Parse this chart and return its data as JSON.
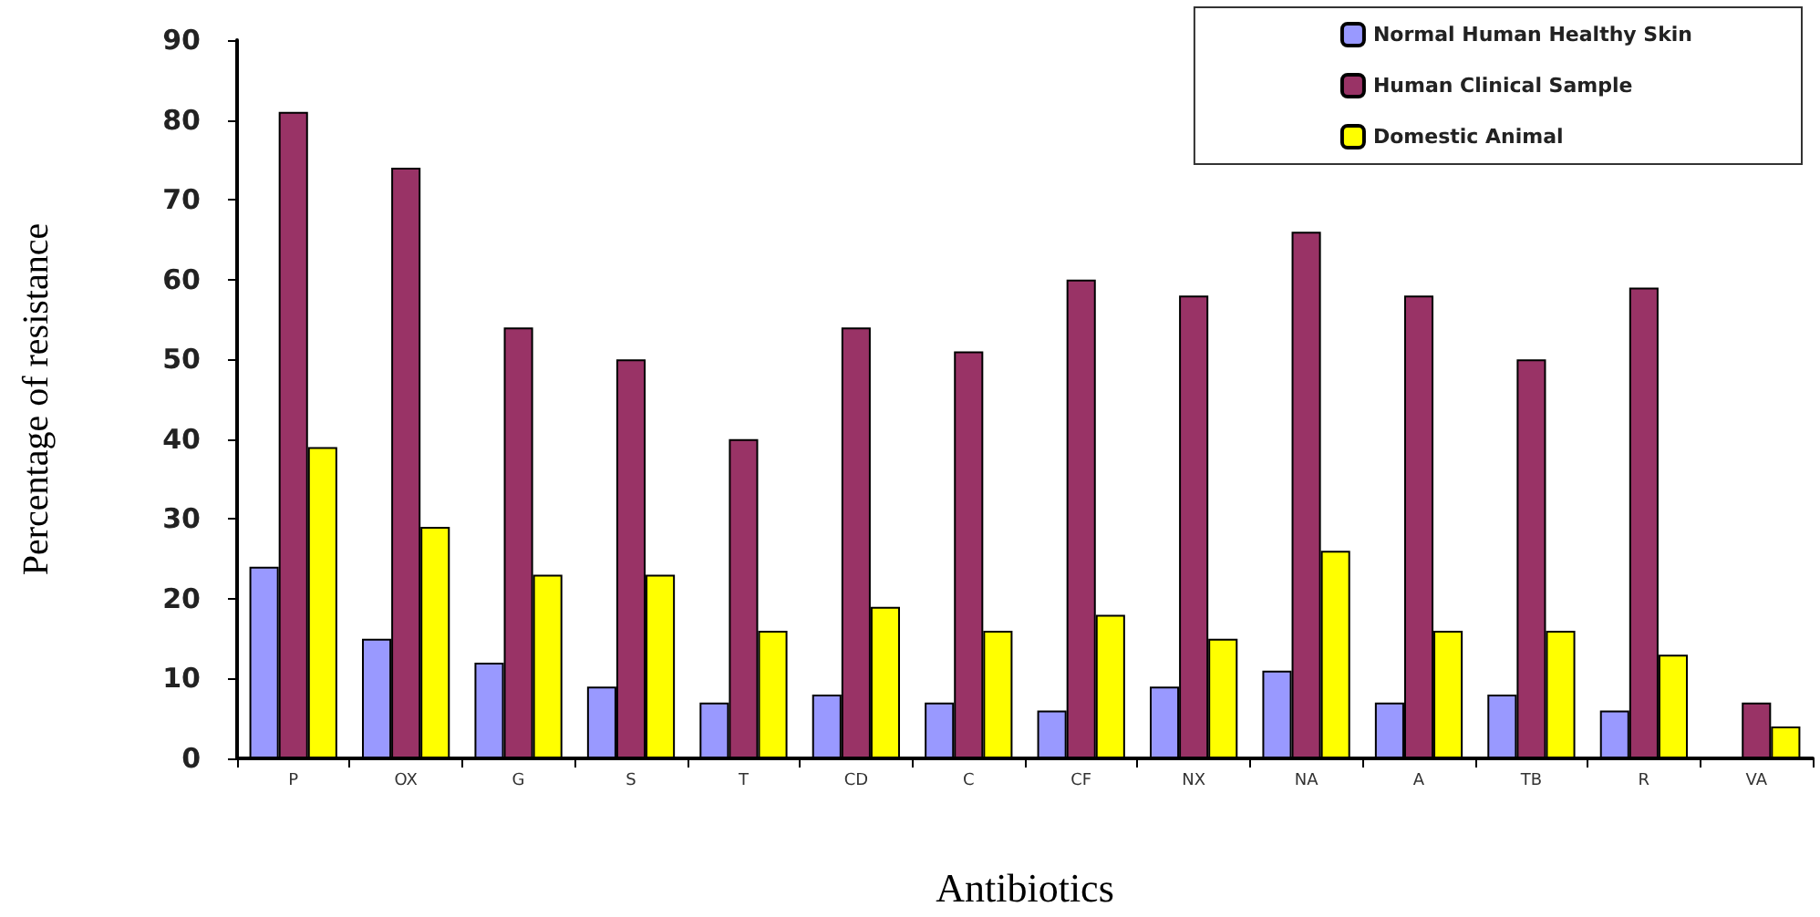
{
  "chart_data": {
    "type": "bar",
    "xlabel": "Antibiotics",
    "ylabel": "Percentage of resistance",
    "categories": [
      "P",
      "OX",
      "G",
      "S",
      "T",
      "CD",
      "C",
      "CF",
      "NX",
      "NA",
      "A",
      "TB",
      "R",
      "VA"
    ],
    "series": [
      {
        "name": "Normal Human Healthy Skin",
        "color": "#9999ff",
        "values": [
          24,
          15,
          12,
          9,
          7,
          8,
          7,
          6,
          9,
          11,
          7,
          8,
          6,
          0
        ]
      },
      {
        "name": "Human Clinical Sample",
        "color": "#993366",
        "values": [
          81,
          74,
          54,
          50,
          40,
          54,
          51,
          60,
          58,
          66,
          58,
          50,
          59,
          7
        ]
      },
      {
        "name": "Domestic Animal",
        "color": "#ffff00",
        "values": [
          39,
          29,
          23,
          23,
          16,
          19,
          16,
          18,
          15,
          26,
          16,
          16,
          13,
          4
        ]
      }
    ],
    "ylim": [
      0,
      90
    ],
    "yticks": [
      0,
      10,
      20,
      30,
      40,
      50,
      60,
      70,
      80,
      90
    ],
    "grid": false,
    "legend": "top right"
  }
}
